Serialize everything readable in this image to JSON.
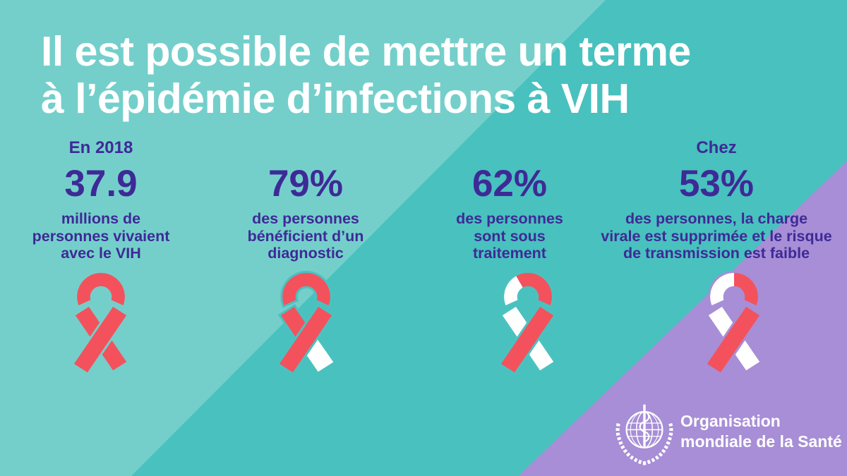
{
  "title": {
    "line1": "Il est possible de mettre un terme",
    "line2": "à l’épidémie d’infections à VIH"
  },
  "stats": [
    {
      "kicker": "En 2018",
      "value": "37.9",
      "desc": "millions de\npersonnes vivaient\navec le VIH",
      "ribbon_variant": "r100",
      "ribbon_gap": "#74cfcb"
    },
    {
      "kicker": "",
      "value": "79%",
      "desc": "des personnes\nbénéficient d’un\ndiagnostic",
      "ribbon_variant": "r79",
      "ribbon_gap": "#4ac2c0"
    },
    {
      "kicker": "",
      "value": "62%",
      "desc": "des personnes\nsont sous\ntraitement",
      "ribbon_variant": "r62",
      "ribbon_gap": "#4ac2c0"
    },
    {
      "kicker": "Chez",
      "value": "53%",
      "desc": "des personnes, la charge\nvirale est supprimée et le risque\nde transmission est faible",
      "ribbon_variant": "r53",
      "ribbon_gap": "#a78ed6"
    }
  ],
  "logo": {
    "line1": "Organisation",
    "line2": "mondiale de la Santé"
  },
  "colors": {
    "teal_dark": "#48c1bf",
    "teal_light": "#74cfcb",
    "purple_panel": "#a78ed6",
    "text_purple": "#3e2a96",
    "title_white": "#ffffff",
    "ribbon_red": "#f3525d",
    "ribbon_white": "#ffffff"
  },
  "chart_data": {
    "type": "table",
    "title": "Il est possible de mettre un terme à l’épidémie d’infections à VIH",
    "categories": [
      "Personnes vivant avec le VIH (en 2018)",
      "des personnes bénéficient d’un diagnostic",
      "des personnes sont sous traitement",
      "des personnes, la charge virale est supprimée et le risque de transmission est faible"
    ],
    "values": [
      37.9,
      79,
      62,
      53
    ],
    "units": [
      "millions",
      "%",
      "%",
      "%"
    ],
    "legend_position": "none",
    "grid": false
  }
}
